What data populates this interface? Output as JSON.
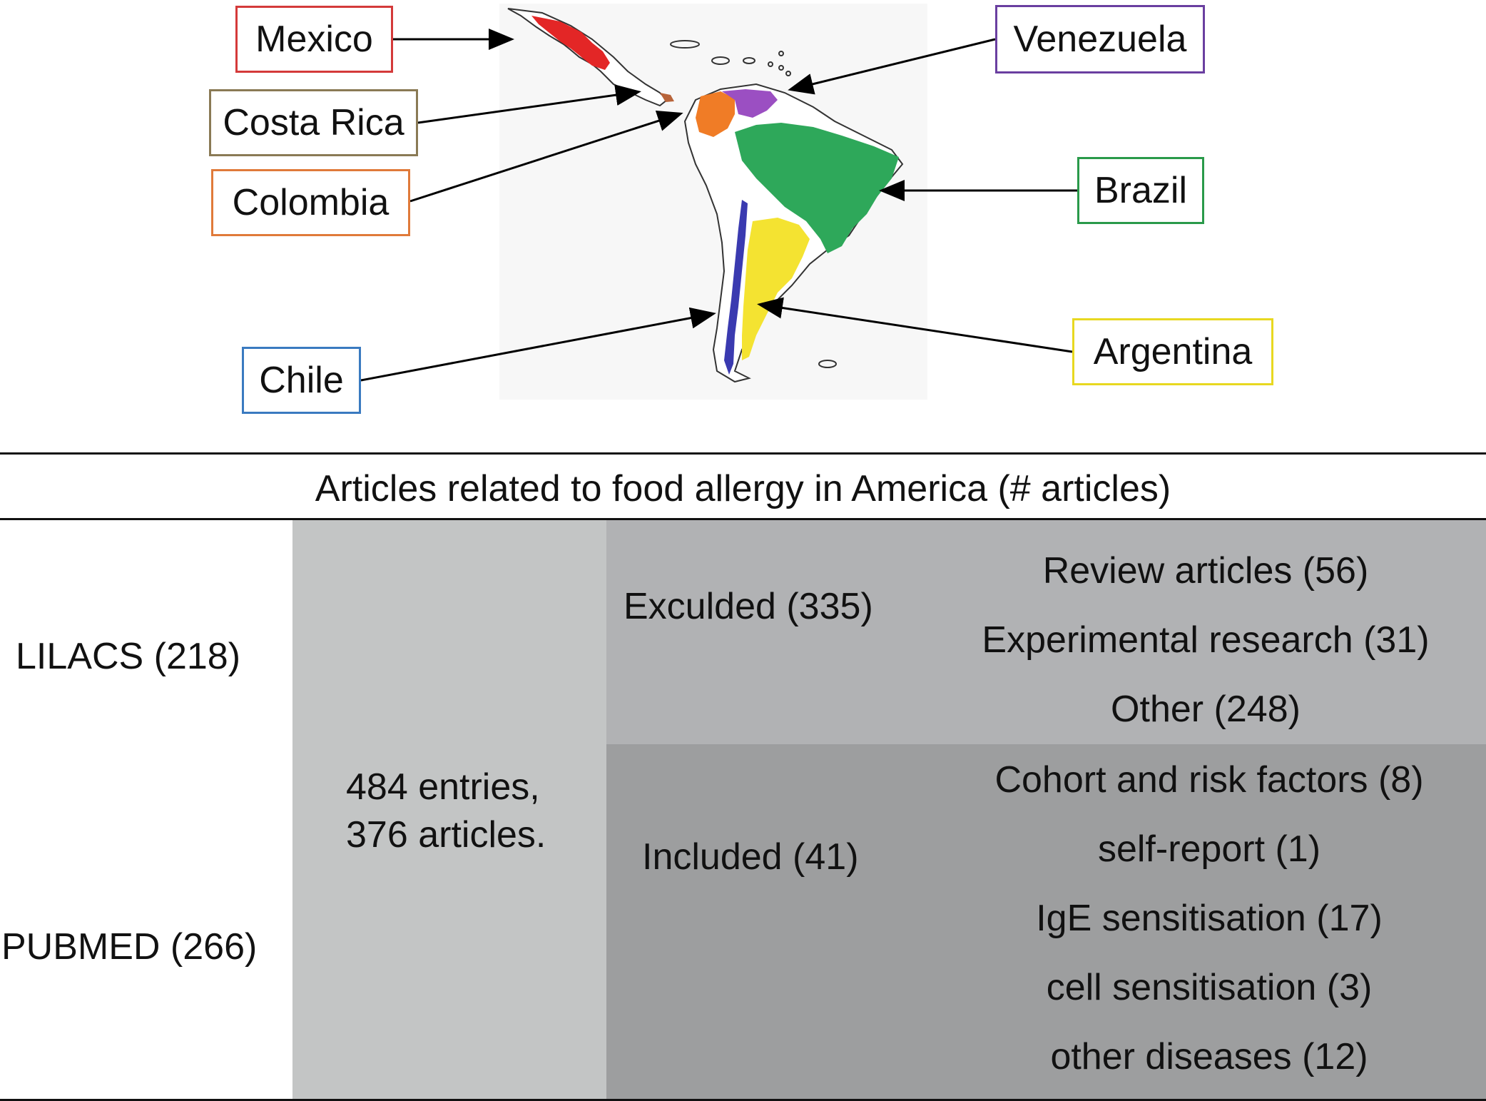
{
  "map": {
    "countries": [
      {
        "name": "Mexico",
        "color": "#e32626",
        "border": "#d33"
      },
      {
        "name": "Costa Rica",
        "color": "#b8643a",
        "border": "#8a7a55"
      },
      {
        "name": "Colombia",
        "color": "#f07c26",
        "border": "#e07a3a"
      },
      {
        "name": "Venezuela",
        "color": "#9b4fc2",
        "border": "#6a3fa0"
      },
      {
        "name": "Brazil",
        "color": "#2ea85a",
        "border": "#2a9a4a"
      },
      {
        "name": "Argentina",
        "color": "#f4e331",
        "border": "#e8d820"
      },
      {
        "name": "Chile",
        "color": "#3a3ab0",
        "border": "#3a7ac0"
      }
    ]
  },
  "table": {
    "title": "Articles related to food allergy in America (# articles)",
    "databases": [
      "LILACS (218)",
      "PUBMED (266)"
    ],
    "entries": [
      "484 entries,",
      "376 articles."
    ],
    "excluded": {
      "label": "Exculded (335)",
      "items": [
        "Review articles (56)",
        "Experimental research (31)",
        "Other (248)"
      ]
    },
    "included": {
      "label": "Included (41)",
      "items": [
        "Cohort and risk factors (8)",
        "self-report (1)",
        "IgE sensitisation (17)",
        "cell sensitisation (3)",
        "other diseases (12)"
      ]
    },
    "colors": {
      "entries_bg": "#c3c5c5",
      "excluded_bg": "#b1b2b4",
      "included_bg": "#9d9e9f"
    }
  }
}
